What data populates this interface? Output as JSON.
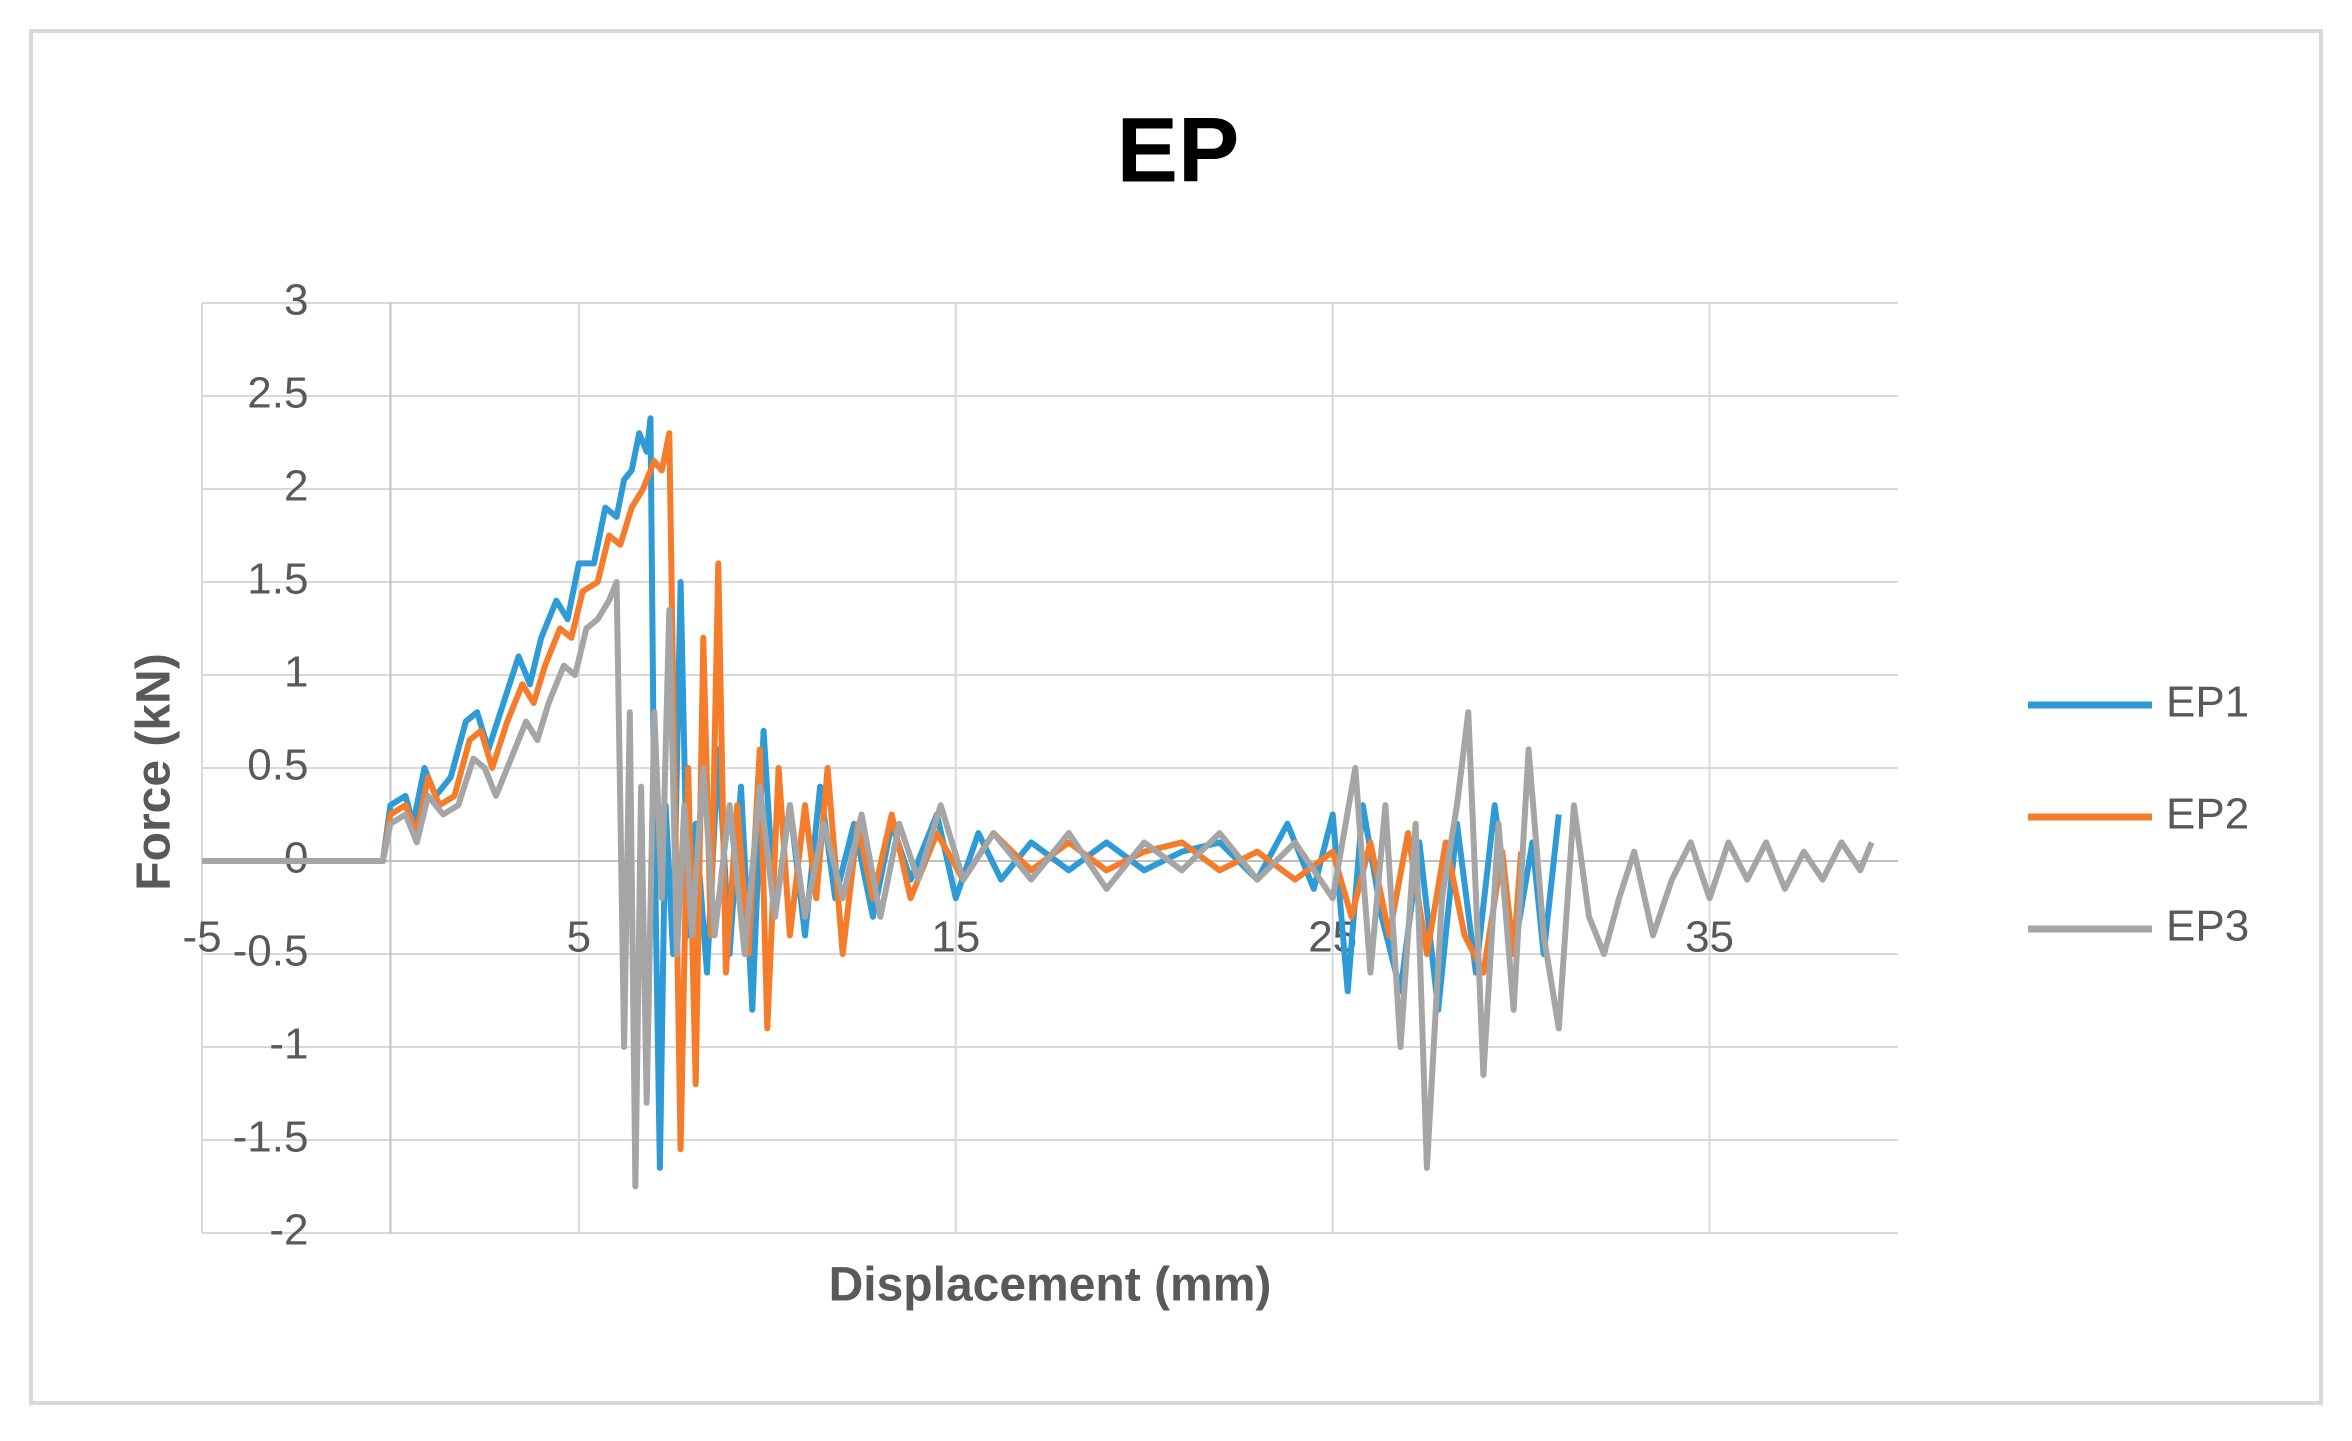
{
  "chart_data": {
    "type": "line",
    "title": "EP",
    "x_label": "Displacement (mm)",
    "y_label": "Force (kN)",
    "xlim": [
      -5,
      40
    ],
    "ylim": [
      -2,
      3
    ],
    "xticks": [
      -5,
      5,
      15,
      25,
      35
    ],
    "yticks": [
      -2,
      -1.5,
      -1,
      -0.5,
      0,
      0.5,
      1,
      1.5,
      2,
      2.5,
      3
    ],
    "grid": true,
    "legend": "right",
    "series": [
      {
        "name": "EP1",
        "color": "#2e9bd6",
        "x": [
          -5,
          -0.2,
          0,
          0.4,
          0.6,
          0.9,
          1.2,
          1.6,
          2,
          2.3,
          2.6,
          3,
          3.4,
          3.7,
          4,
          4.4,
          4.7,
          5,
          5.4,
          5.7,
          6,
          6.2,
          6.4,
          6.6,
          6.8,
          6.9,
          7.0,
          7.15,
          7.3,
          7.5,
          7.7,
          7.9,
          8.1,
          8.4,
          8.7,
          9,
          9.3,
          9.6,
          9.9,
          10.2,
          10.6,
          11,
          11.4,
          11.8,
          12.3,
          12.8,
          13.3,
          13.8,
          14.5,
          15,
          15.6,
          16.2,
          17,
          18,
          19,
          20,
          21,
          22,
          23,
          23.8,
          24.5,
          25,
          25.4,
          25.8,
          26.3,
          26.8,
          27.3,
          27.8,
          28.3,
          28.8,
          29.3,
          29.8,
          30.3,
          30.6,
          31
        ],
        "values": [
          0,
          0,
          0.3,
          0.35,
          0.2,
          0.5,
          0.35,
          0.45,
          0.75,
          0.8,
          0.6,
          0.85,
          1.1,
          0.95,
          1.2,
          1.4,
          1.3,
          1.6,
          1.6,
          1.9,
          1.85,
          2.05,
          2.1,
          2.3,
          2.2,
          2.38,
          0.2,
          -1.65,
          0.3,
          -0.5,
          1.5,
          -0.4,
          0.2,
          -0.6,
          0.6,
          -0.5,
          0.4,
          -0.8,
          0.7,
          -0.3,
          0.3,
          -0.4,
          0.4,
          -0.2,
          0.2,
          -0.3,
          0.2,
          -0.1,
          0.25,
          -0.2,
          0.15,
          -0.1,
          0.1,
          -0.05,
          0.1,
          -0.05,
          0.05,
          0.1,
          -0.1,
          0.2,
          -0.15,
          0.25,
          -0.7,
          0.3,
          -0.3,
          -0.7,
          0.1,
          -0.8,
          0.2,
          -0.6,
          0.3,
          -0.5,
          0.1,
          -0.5,
          0.25
        ]
      },
      {
        "name": "EP2",
        "color": "#f47c2a",
        "x": [
          -5,
          -0.2,
          0,
          0.4,
          0.7,
          1,
          1.3,
          1.7,
          2.1,
          2.4,
          2.7,
          3.1,
          3.5,
          3.8,
          4.1,
          4.5,
          4.8,
          5.1,
          5.5,
          5.8,
          6.1,
          6.4,
          6.7,
          7,
          7.2,
          7.4,
          7.55,
          7.7,
          7.9,
          8.1,
          8.3,
          8.5,
          8.7,
          8.9,
          9.2,
          9.5,
          9.8,
          10,
          10.3,
          10.6,
          11,
          11.3,
          11.6,
          12,
          12.4,
          12.8,
          13.3,
          13.8,
          14.5,
          15.2,
          16,
          17,
          18,
          19,
          20,
          21,
          22,
          23,
          24,
          25,
          25.5,
          26,
          26.5,
          27,
          27.5,
          28,
          28.5,
          29,
          29.5,
          29.8,
          30
        ],
        "values": [
          0,
          0,
          0.25,
          0.3,
          0.15,
          0.45,
          0.3,
          0.35,
          0.65,
          0.7,
          0.5,
          0.75,
          0.95,
          0.85,
          1.05,
          1.25,
          1.2,
          1.45,
          1.5,
          1.75,
          1.7,
          1.9,
          2.0,
          2.15,
          2.1,
          2.3,
          0.3,
          -1.55,
          0.5,
          -1.2,
          1.2,
          -0.4,
          1.6,
          -0.6,
          0.3,
          -0.5,
          0.6,
          -0.9,
          0.5,
          -0.4,
          0.3,
          -0.2,
          0.5,
          -0.5,
          0.2,
          -0.2,
          0.25,
          -0.2,
          0.15,
          -0.1,
          0.15,
          -0.05,
          0.1,
          -0.05,
          0.05,
          0.1,
          -0.05,
          0.05,
          -0.1,
          0.05,
          -0.3,
          0.1,
          -0.4,
          0.15,
          -0.5,
          0.1,
          -0.4,
          -0.6,
          0.05,
          -0.5,
          0.05
        ]
      },
      {
        "name": "EP3",
        "color": "#a5a5a5",
        "x": [
          -5,
          -0.2,
          0,
          0.4,
          0.7,
          1,
          1.4,
          1.8,
          2.2,
          2.5,
          2.8,
          3.2,
          3.6,
          3.9,
          4.2,
          4.6,
          4.9,
          5.2,
          5.5,
          5.8,
          6.0,
          6.1,
          6.2,
          6.35,
          6.5,
          6.65,
          6.8,
          7,
          7.2,
          7.4,
          7.6,
          7.8,
          8,
          8.3,
          8.6,
          9,
          9.4,
          9.8,
          10.2,
          10.6,
          11,
          11.5,
          12,
          12.5,
          13,
          13.5,
          14,
          14.6,
          15.2,
          16,
          17,
          18,
          19,
          20,
          21,
          22,
          23,
          24,
          25,
          25.6,
          26,
          26.4,
          26.8,
          27.2,
          27.5,
          27.9,
          28.3,
          28.6,
          29,
          29.4,
          29.8,
          30.2,
          30.6,
          31,
          31.4,
          31.8,
          32.2,
          32.6,
          33,
          33.5,
          34,
          34.5,
          35,
          35.5,
          36,
          36.5,
          37,
          37.5,
          38,
          38.5,
          39,
          39.3
        ],
        "values": [
          0,
          0,
          0.2,
          0.25,
          0.1,
          0.35,
          0.25,
          0.3,
          0.55,
          0.5,
          0.35,
          0.55,
          0.75,
          0.65,
          0.85,
          1.05,
          1.0,
          1.25,
          1.3,
          1.4,
          1.5,
          0.3,
          -1.0,
          0.8,
          -1.75,
          0.4,
          -1.3,
          0.8,
          -0.2,
          1.35,
          -0.5,
          0.3,
          -0.4,
          0.5,
          -0.4,
          0.3,
          -0.5,
          0.4,
          -0.3,
          0.3,
          -0.3,
          0.2,
          -0.2,
          0.25,
          -0.3,
          0.2,
          -0.1,
          0.3,
          -0.1,
          0.15,
          -0.1,
          0.15,
          -0.15,
          0.1,
          -0.05,
          0.15,
          -0.1,
          0.1,
          -0.2,
          0.5,
          -0.6,
          0.3,
          -1.0,
          0.2,
          -1.65,
          -0.2,
          0.3,
          0.8,
          -1.15,
          0.2,
          -0.8,
          0.6,
          -0.4,
          -0.9,
          0.3,
          -0.3,
          -0.5,
          -0.2,
          0.05,
          -0.4,
          -0.1,
          0.1,
          -0.2,
          0.1,
          -0.1,
          0.1,
          -0.15,
          0.05,
          -0.1,
          0.1,
          -0.05,
          0.1
        ]
      }
    ]
  }
}
